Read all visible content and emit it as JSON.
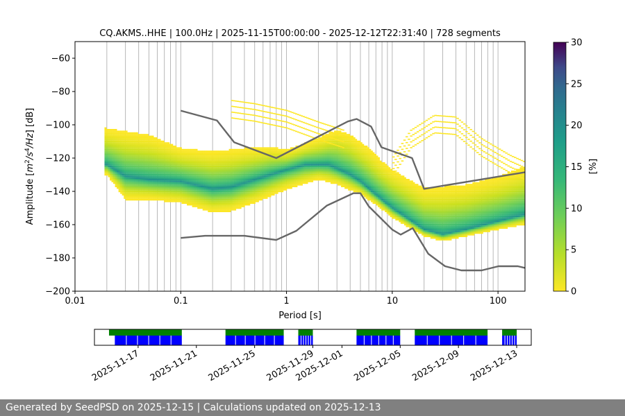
{
  "chart_data": [
    {
      "type": "heatmap",
      "title": "CQ.AKMS..HHE | 100.0Hz | 2025-11-15T00:00:00 - 2025-12-12T22:31:40 | 728 segments",
      "xlabel": "Period [s]",
      "ylabel_parts": [
        "Amplitude [",
        "m",
        "2",
        "/",
        "s",
        "4",
        "/",
        "Hz",
        "] [dB]"
      ],
      "x_scale": "log",
      "xlim": [
        0.01,
        180
      ],
      "ylim": [
        -200,
        -50
      ],
      "x_ticks": [
        0.01,
        0.1,
        1,
        10,
        100
      ],
      "x_tick_labels": [
        "0.01",
        "0.1",
        "1",
        "10",
        "100"
      ],
      "y_ticks": [
        -200,
        -180,
        -160,
        -140,
        -120,
        -100,
        -80,
        -60
      ],
      "y_tick_labels": [
        "−200",
        "−180",
        "−160",
        "−140",
        "−120",
        "−100",
        "−80",
        "−60"
      ],
      "grid": "vertical",
      "colorbar": {
        "label": "[%]",
        "range": [
          0,
          30
        ],
        "ticks": [
          0,
          5,
          10,
          15,
          20,
          25,
          30
        ],
        "tick_labels": [
          "0",
          "5",
          "10",
          "15",
          "20",
          "25",
          "30"
        ],
        "colormap": "viridis (reversed)"
      },
      "noise_models": [
        {
          "name": "NHNM",
          "color": "#666666",
          "points": [
            [
              0.1,
              -91.5
            ],
            [
              0.22,
              -97.4
            ],
            [
              0.32,
              -110.5
            ],
            [
              0.8,
              -120
            ],
            [
              3.8,
              -98
            ],
            [
              4.6,
              -96.5
            ],
            [
              6.3,
              -101
            ],
            [
              7.9,
              -113.5
            ],
            [
              15.4,
              -120
            ],
            [
              20,
              -138.5
            ],
            [
              180,
              -128.5
            ]
          ]
        },
        {
          "name": "NLNM",
          "color": "#666666",
          "points": [
            [
              0.1,
              -168
            ],
            [
              0.17,
              -166.7
            ],
            [
              0.4,
              -166.7
            ],
            [
              0.8,
              -169.2
            ],
            [
              1.24,
              -163.7
            ],
            [
              2.4,
              -148.6
            ],
            [
              4.3,
              -141.1
            ],
            [
              5.0,
              -141.1
            ],
            [
              6.0,
              -149
            ],
            [
              10,
              -163
            ],
            [
              12,
              -166
            ],
            [
              15.6,
              -162.1
            ],
            [
              21.9,
              -177.5
            ],
            [
              31.6,
              -185
            ],
            [
              45,
              -187.5
            ],
            [
              70,
              -187.5
            ],
            [
              101,
              -185
            ],
            [
              154,
              -185
            ],
            [
              180,
              -186
            ]
          ]
        }
      ],
      "percentile_curves": [
        {
          "name": "mode",
          "points": [
            [
              0.02,
              -124
            ],
            [
              0.03,
              -131
            ],
            [
              0.05,
              -133
            ],
            [
              0.1,
              -134
            ],
            [
              0.2,
              -138.5
            ],
            [
              0.3,
              -137.5
            ],
            [
              0.5,
              -133
            ],
            [
              1,
              -127
            ],
            [
              1.5,
              -124
            ],
            [
              2.5,
              -124
            ],
            [
              4,
              -130
            ],
            [
              5,
              -134
            ],
            [
              7,
              -142
            ],
            [
              10,
              -150
            ],
            [
              20,
              -163
            ],
            [
              30,
              -166
            ],
            [
              50,
              -163
            ],
            [
              100,
              -158
            ],
            [
              180,
              -154
            ]
          ]
        },
        {
          "name": "lower",
          "points": [
            [
              0.02,
              -130
            ],
            [
              0.03,
              -145
            ],
            [
              0.05,
              -145
            ],
            [
              0.1,
              -147
            ],
            [
              0.2,
              -153
            ],
            [
              0.3,
              -152
            ],
            [
              0.5,
              -147
            ],
            [
              1,
              -139
            ],
            [
              2,
              -133
            ],
            [
              3,
              -136
            ],
            [
              5,
              -142
            ],
            [
              7,
              -148
            ],
            [
              10,
              -156
            ],
            [
              20,
              -167
            ],
            [
              30,
              -170
            ],
            [
              60,
              -166
            ],
            [
              100,
              -163
            ],
            [
              180,
              -160
            ]
          ]
        },
        {
          "name": "upper",
          "points": [
            [
              0.02,
              -102
            ],
            [
              0.05,
              -106
            ],
            [
              0.1,
              -114
            ],
            [
              0.2,
              -116
            ],
            [
              0.4,
              -114
            ],
            [
              0.7,
              -113
            ],
            [
              1,
              -115
            ],
            [
              2,
              -108
            ],
            [
              3,
              -103
            ],
            [
              4,
              -106
            ],
            [
              6,
              -114
            ],
            [
              8,
              -122
            ],
            [
              10,
              -127
            ],
            [
              20,
              -138
            ],
            [
              50,
              -136
            ],
            [
              100,
              -131
            ],
            [
              180,
              -125
            ]
          ]
        }
      ],
      "sparse_bands": [
        {
          "name": "upper-arch",
          "points": [
            [
              0.3,
              -85
            ],
            [
              0.5,
              -87
            ],
            [
              1,
              -91
            ],
            [
              2,
              -98
            ],
            [
              3.5,
              -103
            ]
          ]
        },
        {
          "name": "right-hump",
          "points": [
            [
              10,
              -120
            ],
            [
              15,
              -103
            ],
            [
              25,
              -94
            ],
            [
              40,
              -95
            ],
            [
              70,
              -108
            ],
            [
              130,
              -118
            ],
            [
              180,
              -122
            ]
          ]
        }
      ]
    },
    {
      "type": "timeline",
      "x_tick_labels": [
        "2025-11-17",
        "2025-11-21",
        "2025-11-25",
        "2025-11-29",
        "2025-12-01",
        "2025-12-05",
        "2025-12-09",
        "2025-12-13"
      ],
      "x_tick_dates": [
        "2025-11-17",
        "2025-11-21",
        "2025-11-25",
        "2025-11-29",
        "2025-12-01",
        "2025-12-05",
        "2025-12-09",
        "2025-12-13"
      ],
      "date_range": [
        "2025-11-14",
        "2025-12-14"
      ],
      "data_color": "#008000",
      "psd_color": "#0000ff",
      "data_availability": [
        [
          "2025-11-15",
          "2025-11-20"
        ],
        [
          "2025-11-23",
          "2025-11-27"
        ],
        [
          "2025-11-28",
          "2025-11-29"
        ],
        [
          "2025-12-02",
          "2025-12-05"
        ],
        [
          "2025-12-06",
          "2025-12-11"
        ],
        [
          "2025-12-12",
          "2025-12-13"
        ]
      ],
      "psd_availability": [
        [
          "2025-11-15.4",
          "2025-11-20"
        ],
        [
          "2025-11-23",
          "2025-11-27"
        ],
        [
          "2025-11-28",
          "2025-11-29"
        ],
        [
          "2025-12-02",
          "2025-12-05"
        ],
        [
          "2025-12-06",
          "2025-12-11"
        ],
        [
          "2025-12-12",
          "2025-12-13"
        ]
      ]
    }
  ],
  "footer": "Generated by SeedPSD on 2025-12-15 | Calculations updated on 2025-12-13"
}
